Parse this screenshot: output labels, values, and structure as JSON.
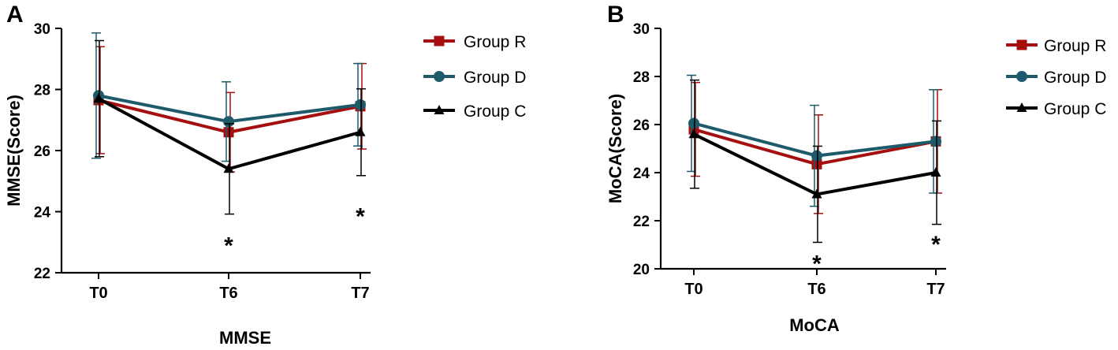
{
  "chart_data": [
    {
      "type": "line",
      "panel_label": "A",
      "title": "",
      "xlabel": "MMSE",
      "ylabel": "MMSE(Score)",
      "categories": [
        "T0",
        "T6",
        "T7"
      ],
      "ylim": [
        22,
        30
      ],
      "yticks": [
        "22",
        "24",
        "26",
        "28",
        "30"
      ],
      "series": [
        {
          "name": "Group R",
          "color": "#a50f0f",
          "marker": "square",
          "values": [
            27.65,
            26.6,
            27.45
          ],
          "err": [
            1.75,
            1.3,
            1.4
          ]
        },
        {
          "name": "Group D",
          "color": "#1d5b6b",
          "marker": "circle",
          "values": [
            27.8,
            26.95,
            27.5
          ],
          "err": [
            2.05,
            1.3,
            1.35
          ]
        },
        {
          "name": "Group C",
          "color": "#000000",
          "marker": "triangle",
          "values": [
            27.7,
            25.4,
            26.6
          ],
          "err": [
            1.9,
            1.48,
            1.42
          ]
        }
      ],
      "annotations": [
        {
          "text": "*",
          "category": "T6",
          "y": 23.0
        },
        {
          "text": "*",
          "category": "T7",
          "y": 23.95
        }
      ]
    },
    {
      "type": "line",
      "panel_label": "B",
      "title": "",
      "xlabel": "MoCA",
      "ylabel": "MoCA(Score)",
      "categories": [
        "T0",
        "T6",
        "T7"
      ],
      "ylim": [
        20,
        30
      ],
      "yticks": [
        "20",
        "22",
        "24",
        "26",
        "28",
        "30"
      ],
      "series": [
        {
          "name": "Group R",
          "color": "#a50f0f",
          "marker": "square",
          "values": [
            25.8,
            24.35,
            25.3
          ],
          "err": [
            1.95,
            2.05,
            2.15
          ]
        },
        {
          "name": "Group D",
          "color": "#1d5b6b",
          "marker": "circle",
          "values": [
            26.05,
            24.7,
            25.3
          ],
          "err": [
            2.0,
            2.1,
            2.15
          ]
        },
        {
          "name": "Group C",
          "color": "#000000",
          "marker": "triangle",
          "values": [
            25.6,
            23.1,
            24.0
          ],
          "err": [
            2.25,
            2.0,
            2.15
          ]
        }
      ],
      "annotations": [
        {
          "text": "*",
          "category": "T6",
          "y": 20.35
        },
        {
          "text": "*",
          "category": "T7",
          "y": 21.15
        }
      ]
    }
  ]
}
